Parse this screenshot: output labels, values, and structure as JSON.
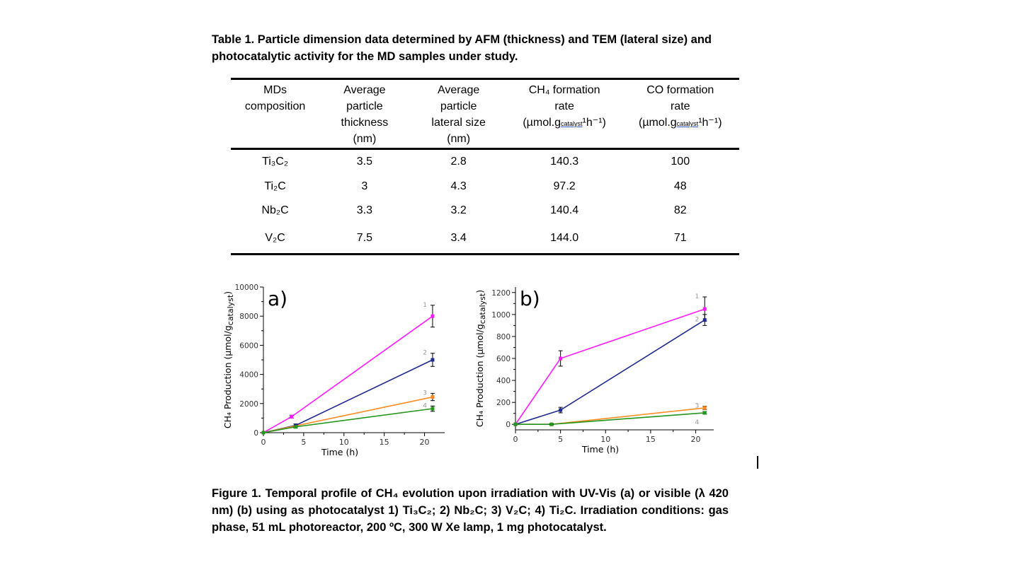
{
  "table_caption": "Table 1.  Particle dimension data determined by AFM (thickness) and TEM (lateral size) and photocatalytic activity for the MD samples under study.",
  "table": {
    "headers": [
      {
        "lines": [
          "MDs",
          "composition"
        ]
      },
      {
        "lines": [
          "Average",
          "particle",
          "thickness",
          "(nm)"
        ]
      },
      {
        "lines": [
          "Average",
          "particle",
          "lateral size",
          "(nm)"
        ]
      },
      {
        "lines": [
          "CH₄ formation",
          "rate"
        ],
        "unit_pre": "(µmol.g",
        "unit_sub": "catalyst",
        "unit_post": "¹h⁻¹)"
      },
      {
        "lines": [
          "CO formation",
          "rate"
        ],
        "unit_pre": "(µmol.g",
        "unit_sub": "catalyst",
        "unit_post": "¹h⁻¹)"
      }
    ],
    "rows": [
      [
        "Ti₃C₂",
        "3.5",
        "2.8",
        "140.3",
        "100"
      ],
      [
        "Ti₂C",
        "3",
        "4.3",
        "97.2",
        "48"
      ],
      [
        "Nb₂C",
        "3.3",
        "3.2",
        "140.4",
        "82"
      ],
      [
        "V₂C",
        "7.5",
        "3.4",
        "144.0",
        "71"
      ]
    ]
  },
  "chart_data": [
    {
      "type": "line",
      "panel_label": "a)",
      "xlabel": "Time (h)",
      "ylabel": "CH₄ Production (µmol/g",
      "ylabel_sub": "catalyst",
      "ylabel_post": ")",
      "xlim": [
        0,
        22.5
      ],
      "ylim": [
        0,
        10000
      ],
      "xticks": [
        0,
        5,
        10,
        15,
        20
      ],
      "yticks": [
        0,
        2000,
        4000,
        6000,
        8000,
        10000
      ],
      "series": [
        {
          "name": "1",
          "color": "#ff1aff",
          "x": [
            0,
            3.5,
            21
          ],
          "y": [
            0,
            1100,
            8000
          ],
          "err": [
            0,
            100,
            750
          ]
        },
        {
          "name": "2",
          "color": "#1f2a8f",
          "x": [
            0,
            4,
            21
          ],
          "y": [
            0,
            500,
            5000
          ],
          "err": [
            0,
            100,
            450
          ]
        },
        {
          "name": "3",
          "color": "#ff8a1f",
          "x": [
            0,
            21
          ],
          "y": [
            0,
            2450
          ],
          "err": [
            0,
            250
          ]
        },
        {
          "name": "4",
          "color": "#23961d",
          "x": [
            0,
            4,
            21
          ],
          "y": [
            0,
            400,
            1650
          ],
          "err": [
            0,
            80,
            180
          ]
        }
      ]
    },
    {
      "type": "line",
      "panel_label": "b)",
      "xlabel": "Time (h)",
      "ylabel": "CH₄ Production (µmol/g",
      "ylabel_sub": "catalyst",
      "ylabel_post": ")",
      "xlim": [
        0,
        22
      ],
      "ylim": [
        -50,
        1250
      ],
      "xticks": [
        0,
        5,
        10,
        15,
        20
      ],
      "yticks": [
        0,
        200,
        400,
        600,
        800,
        1000,
        1200
      ],
      "series": [
        {
          "name": "1",
          "color": "#ff1aff",
          "x": [
            0,
            5,
            21
          ],
          "y": [
            0,
            600,
            1050
          ],
          "err": [
            0,
            70,
            110
          ]
        },
        {
          "name": "2",
          "color": "#1f2a8f",
          "x": [
            0,
            5,
            21
          ],
          "y": [
            0,
            130,
            950
          ],
          "err": [
            0,
            25,
            50
          ]
        },
        {
          "name": "3",
          "color": "#ff8a1f",
          "x": [
            0,
            4,
            21
          ],
          "y": [
            0,
            0,
            150
          ],
          "err": [
            0,
            5,
            15
          ]
        },
        {
          "name": "4",
          "color": "#23961d",
          "x": [
            0,
            4,
            21
          ],
          "y": [
            0,
            0,
            105
          ],
          "err": [
            0,
            5,
            12
          ]
        }
      ]
    }
  ],
  "figure_caption": "Figure 1. Temporal profile of CH₄ evolution upon irradiation with UV-Vis (a) or visible (λ 420 nm) (b) using as photocatalyst 1) Ti₃C₂; 2) Nb₂C; 3) V₂C; 4) Ti₂C. Irradiation conditions: gas phase, 51 mL photoreactor, 200 ºC, 300 W Xe lamp, 1 mg photocatalyst."
}
